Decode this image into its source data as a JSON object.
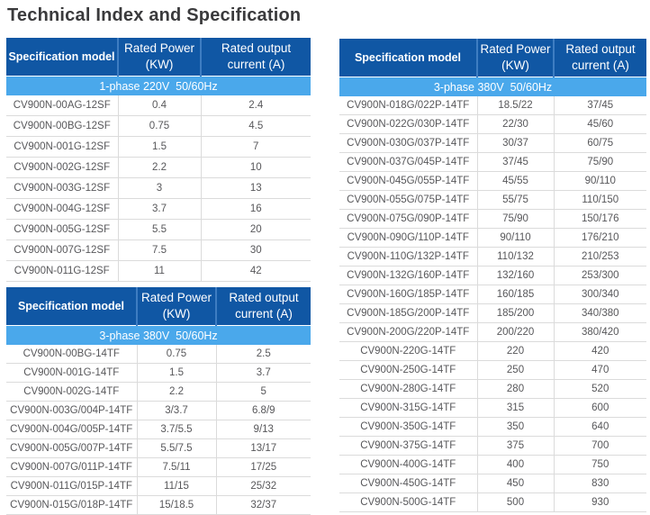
{
  "page": {
    "title": "Technical Index and Specification"
  },
  "colors": {
    "header_bg": "#1057A4",
    "header_divider": "#3E7DC2",
    "subheader_bg": "#4AA8EB",
    "body_text": "#57575A",
    "grid_line": "#DBDBDB",
    "title_color": "#3A3A3C"
  },
  "tables": [
    {
      "name": "1-phase-220v",
      "columns": [
        "Specification model",
        "Rated Power (KW)",
        "Rated output current (A)"
      ],
      "subheader": "1-phase 220V  50/60Hz",
      "rows": [
        [
          "CV900N-00AG-12SF",
          "0.4",
          "2.4"
        ],
        [
          "CV900N-00BG-12SF",
          "0.75",
          "4.5"
        ],
        [
          "CV900N-001G-12SF",
          "1.5",
          "7"
        ],
        [
          "CV900N-002G-12SF",
          "2.2",
          "10"
        ],
        [
          "CV900N-003G-12SF",
          "3",
          "13"
        ],
        [
          "CV900N-004G-12SF",
          "3.7",
          "16"
        ],
        [
          "CV900N-005G-12SF",
          "5.5",
          "20"
        ],
        [
          "CV900N-007G-12SF",
          "7.5",
          "30"
        ],
        [
          "CV900N-011G-12SF",
          "11",
          "42"
        ]
      ]
    },
    {
      "name": "3-phase-380v-left",
      "columns": [
        "Specification model",
        "Rated Power (KW)",
        "Rated output current (A)"
      ],
      "subheader": "3-phase 380V  50/60Hz",
      "rows": [
        [
          "CV900N-00BG-14TF",
          "0.75",
          "2.5"
        ],
        [
          "CV900N-001G-14TF",
          "1.5",
          "3.7"
        ],
        [
          "CV900N-002G-14TF",
          "2.2",
          "5"
        ],
        [
          "CV900N-003G/004P-14TF",
          "3/3.7",
          "6.8/9"
        ],
        [
          "CV900N-004G/005P-14TF",
          "3.7/5.5",
          "9/13"
        ],
        [
          "CV900N-005G/007P-14TF",
          "5.5/7.5",
          "13/17"
        ],
        [
          "CV900N-007G/011P-14TF",
          "7.5/11",
          "17/25"
        ],
        [
          "CV900N-011G/015P-14TF",
          "11/15",
          "25/32"
        ],
        [
          "CV900N-015G/018P-14TF",
          "15/18.5",
          "32/37"
        ]
      ]
    },
    {
      "name": "3-phase-380v-right",
      "columns": [
        "Specification model",
        "Rated Power (KW)",
        "Rated output current (A)"
      ],
      "subheader": "3-phase 380V  50/60Hz",
      "rows": [
        [
          "CV900N-018G/022P-14TF",
          "18.5/22",
          "37/45"
        ],
        [
          "CV900N-022G/030P-14TF",
          "22/30",
          "45/60"
        ],
        [
          "CV900N-030G/037P-14TF",
          "30/37",
          "60/75"
        ],
        [
          "CV900N-037G/045P-14TF",
          "37/45",
          "75/90"
        ],
        [
          "CV900N-045G/055P-14TF",
          "45/55",
          "90/110"
        ],
        [
          "CV900N-055G/075P-14TF",
          "55/75",
          "110/150"
        ],
        [
          "CV900N-075G/090P-14TF",
          "75/90",
          "150/176"
        ],
        [
          "CV900N-090G/110P-14TF",
          "90/110",
          "176/210"
        ],
        [
          "CV900N-110G/132P-14TF",
          "110/132",
          "210/253"
        ],
        [
          "CV900N-132G/160P-14TF",
          "132/160",
          "253/300"
        ],
        [
          "CV900N-160G/185P-14TF",
          "160/185",
          "300/340"
        ],
        [
          "CV900N-185G/200P-14TF",
          "185/200",
          "340/380"
        ],
        [
          "CV900N-200G/220P-14TF",
          "200/220",
          "380/420"
        ],
        [
          "CV900N-220G-14TF",
          "220",
          "420"
        ],
        [
          "CV900N-250G-14TF",
          "250",
          "470"
        ],
        [
          "CV900N-280G-14TF",
          "280",
          "520"
        ],
        [
          "CV900N-315G-14TF",
          "315",
          "600"
        ],
        [
          "CV900N-350G-14TF",
          "350",
          "640"
        ],
        [
          "CV900N-375G-14TF",
          "375",
          "700"
        ],
        [
          "CV900N-400G-14TF",
          "400",
          "750"
        ],
        [
          "CV900N-450G-14TF",
          "450",
          "830"
        ],
        [
          "CV900N-500G-14TF",
          "500",
          "930"
        ]
      ]
    }
  ]
}
